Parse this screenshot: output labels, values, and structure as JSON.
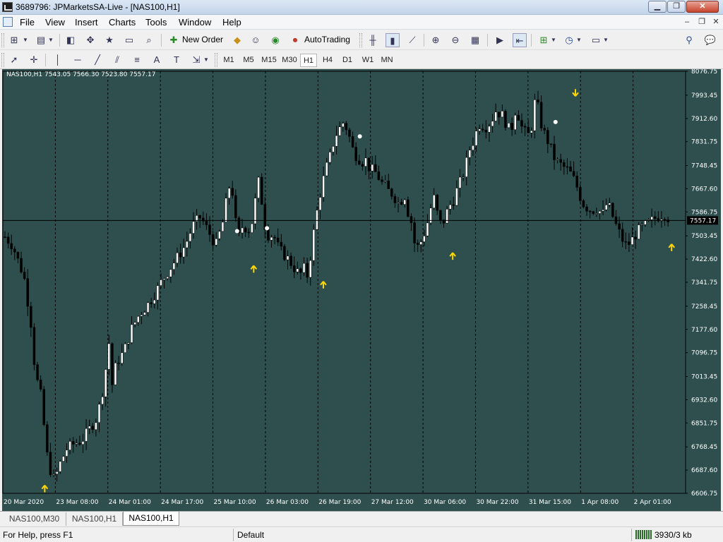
{
  "window": {
    "title": "3689796: JPMarketsSA-Live - [NAS100,H1]",
    "minimize_icon": "minimize-icon",
    "maximize_icon": "maximize-icon",
    "close_icon": "close-icon"
  },
  "menu": {
    "items": [
      "File",
      "View",
      "Insert",
      "Charts",
      "Tools",
      "Window",
      "Help"
    ]
  },
  "toolbar1": {
    "new_order_label": "New Order",
    "autotrading_label": "AutoTrading"
  },
  "toolbar2": {
    "timeframes": [
      "M1",
      "M5",
      "M15",
      "M30",
      "H1",
      "H4",
      "D1",
      "W1",
      "MN"
    ],
    "active_timeframe": "H1"
  },
  "chart": {
    "info_text": "NAS100,H1  7543.05 7566.30 7523.80 7557.17",
    "current_price_label": "7557.17",
    "colors": {
      "background": "#2f4f4f",
      "candle_bull": "#ffffff",
      "candle_bear": "#000000",
      "grid": "#000000",
      "arrow": "#ffd700",
      "axis_text": "#ffffff"
    }
  },
  "chart_data": {
    "type": "candlestick",
    "symbol": "NAS100",
    "timeframe": "H1",
    "ylim": [
      6606.75,
      8076.75
    ],
    "y_ticks": [
      "8076.75",
      "7993.45",
      "7912.60",
      "7831.75",
      "7748.45",
      "7667.60",
      "7586.75",
      "7503.45",
      "7422.60",
      "7341.75",
      "7258.45",
      "7177.60",
      "7096.75",
      "7013.45",
      "6932.60",
      "6851.75",
      "6768.45",
      "6687.60",
      "6606.75"
    ],
    "x_ticks": [
      "20 Mar 2020",
      "23 Mar 08:00",
      "24 Mar 01:00",
      "24 Mar 17:00",
      "25 Mar 10:00",
      "26 Mar 03:00",
      "26 Mar 19:00",
      "27 Mar 12:00",
      "30 Mar 06:00",
      "30 Mar 22:00",
      "31 Mar 15:00",
      "1 Apr 08:00",
      "2 Apr 01:00"
    ],
    "last_price": 7557.17,
    "path": [
      [
        0,
        7500
      ],
      [
        2,
        7470
      ],
      [
        5,
        7360
      ],
      [
        7,
        7180
      ],
      [
        8,
        7000
      ],
      [
        9,
        6990
      ],
      [
        11,
        6740
      ],
      [
        12,
        6680
      ],
      [
        13,
        6650
      ],
      [
        14,
        6700
      ],
      [
        16,
        6760
      ],
      [
        18,
        6780
      ],
      [
        20,
        6790
      ],
      [
        22,
        6830
      ],
      [
        24,
        6870
      ],
      [
        26,
        7000
      ],
      [
        27,
        7150
      ],
      [
        28,
        6980
      ],
      [
        29,
        7060
      ],
      [
        31,
        7100
      ],
      [
        33,
        7180
      ],
      [
        35,
        7230
      ],
      [
        37,
        7260
      ],
      [
        39,
        7300
      ],
      [
        41,
        7350
      ],
      [
        43,
        7390
      ],
      [
        45,
        7430
      ],
      [
        47,
        7470
      ],
      [
        49,
        7540
      ],
      [
        51,
        7570
      ],
      [
        53,
        7520
      ],
      [
        55,
        7470
      ],
      [
        57,
        7560
      ],
      [
        58,
        7650
      ],
      [
        59,
        7700
      ],
      [
        60,
        7560
      ],
      [
        61,
        7500
      ],
      [
        62,
        7540
      ],
      [
        64,
        7520
      ],
      [
        65,
        7600
      ],
      [
        66,
        7700
      ],
      [
        67,
        7620
      ],
      [
        68,
        7520
      ],
      [
        69,
        7500
      ],
      [
        70,
        7510
      ],
      [
        71,
        7470
      ],
      [
        72,
        7450
      ],
      [
        74,
        7420
      ],
      [
        75,
        7400
      ],
      [
        76,
        7380
      ],
      [
        77,
        7370
      ],
      [
        78,
        7390
      ],
      [
        79,
        7360
      ],
      [
        80,
        7470
      ],
      [
        81,
        7560
      ],
      [
        82,
        7640
      ],
      [
        83,
        7700
      ],
      [
        84,
        7750
      ],
      [
        85,
        7790
      ],
      [
        86,
        7850
      ],
      [
        87,
        7870
      ],
      [
        88,
        7900
      ],
      [
        89,
        7880
      ],
      [
        90,
        7840
      ],
      [
        91,
        7790
      ],
      [
        92,
        7780
      ],
      [
        93,
        7760
      ],
      [
        94,
        7770
      ],
      [
        95,
        7740
      ],
      [
        96,
        7730
      ],
      [
        97,
        7720
      ],
      [
        98,
        7690
      ],
      [
        99,
        7680
      ],
      [
        100,
        7660
      ],
      [
        101,
        7650
      ],
      [
        102,
        7630
      ],
      [
        103,
        7610
      ],
      [
        104,
        7660
      ],
      [
        105,
        7590
      ],
      [
        106,
        7550
      ],
      [
        107,
        7460
      ],
      [
        108,
        7470
      ],
      [
        109,
        7500
      ],
      [
        110,
        7540
      ],
      [
        111,
        7600
      ],
      [
        112,
        7640
      ],
      [
        113,
        7560
      ],
      [
        114,
        7540
      ],
      [
        115,
        7580
      ],
      [
        116,
        7610
      ],
      [
        117,
        7630
      ],
      [
        118,
        7670
      ],
      [
        119,
        7700
      ],
      [
        120,
        7740
      ],
      [
        121,
        7800
      ],
      [
        122,
        7830
      ],
      [
        123,
        7870
      ],
      [
        124,
        7900
      ],
      [
        125,
        7880
      ],
      [
        126,
        7890
      ],
      [
        127,
        7910
      ],
      [
        128,
        7940
      ],
      [
        129,
        7930
      ],
      [
        130,
        7920
      ],
      [
        131,
        7880
      ],
      [
        132,
        7870
      ],
      [
        133,
        7940
      ],
      [
        134,
        7920
      ],
      [
        135,
        7870
      ],
      [
        136,
        7860
      ],
      [
        137,
        7850
      ],
      [
        138,
        7970
      ],
      [
        139,
        7950
      ],
      [
        140,
        7880
      ],
      [
        141,
        7850
      ],
      [
        142,
        7820
      ],
      [
        143,
        7780
      ],
      [
        144,
        7760
      ],
      [
        145,
        7750
      ],
      [
        146,
        7740
      ],
      [
        147,
        7730
      ],
      [
        148,
        7710
      ],
      [
        149,
        7680
      ],
      [
        150,
        7640
      ],
      [
        151,
        7610
      ],
      [
        152,
        7600
      ],
      [
        153,
        7590
      ],
      [
        154,
        7600
      ],
      [
        155,
        7590
      ],
      [
        156,
        7580
      ],
      [
        157,
        7620
      ],
      [
        158,
        7590
      ],
      [
        159,
        7550
      ],
      [
        160,
        7520
      ],
      [
        161,
        7490
      ],
      [
        162,
        7470
      ],
      [
        163,
        7480
      ],
      [
        164,
        7500
      ],
      [
        165,
        7520
      ],
      [
        166,
        7530
      ],
      [
        167,
        7540
      ],
      [
        168,
        7550
      ],
      [
        170,
        7570
      ],
      [
        172,
        7580
      ],
      [
        173,
        7565
      ],
      [
        174,
        7557
      ]
    ],
    "up_arrows": [
      [
        12,
        6620
      ],
      [
        75,
        7385
      ],
      [
        96,
        7330
      ],
      [
        135,
        7430
      ],
      [
        201,
        7460
      ]
    ],
    "down_arrows": [
      [
        172,
        8005
      ]
    ],
    "white_dots": [
      [
        70,
        7520
      ],
      [
        79,
        7530
      ],
      [
        107,
        7850
      ],
      [
        166,
        7900
      ]
    ]
  },
  "tabs": {
    "items": [
      "NAS100,M30",
      "NAS100,H1",
      "NAS100,H1"
    ],
    "active_index": 2
  },
  "status": {
    "help_text": "For Help, press F1",
    "profile": "Default",
    "network": "3930/3 kb"
  }
}
